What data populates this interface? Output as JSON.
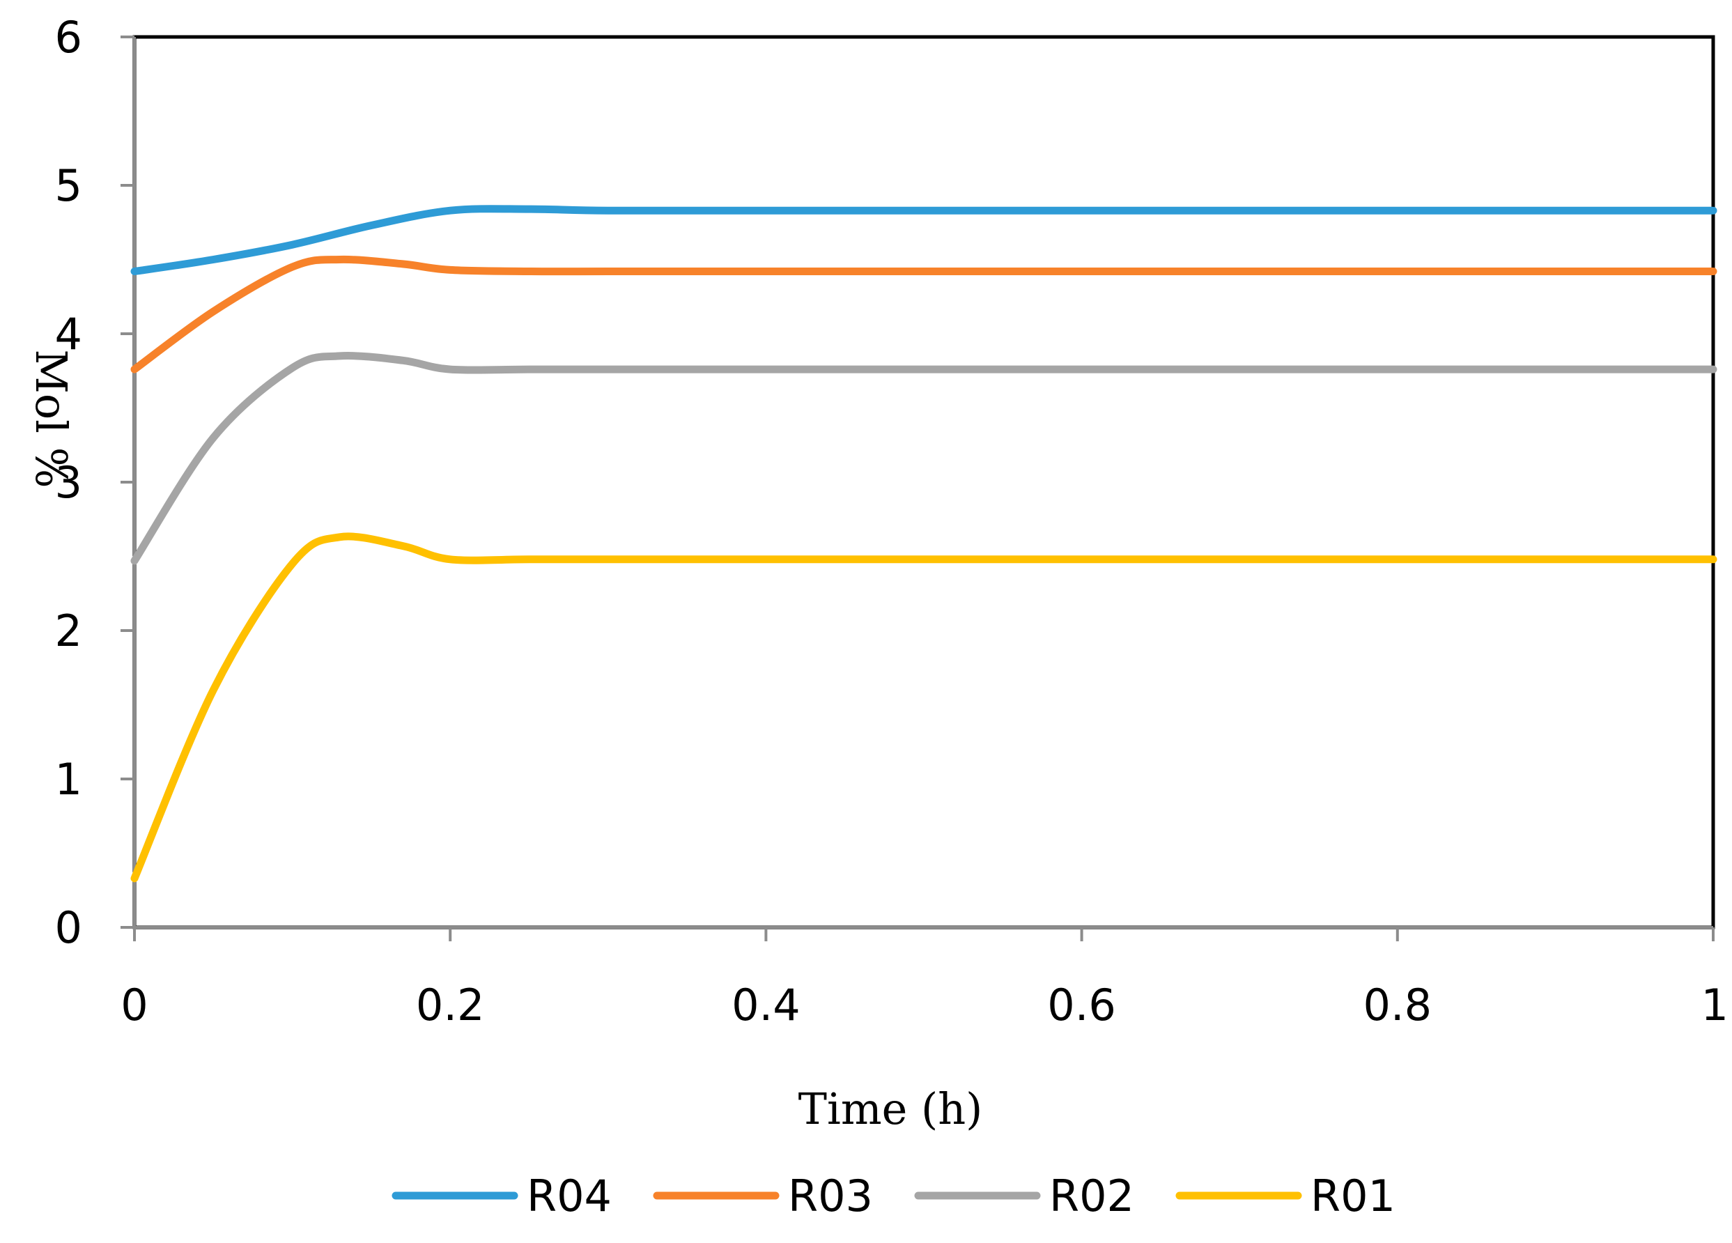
{
  "chart_data": {
    "type": "line",
    "title": "",
    "xlabel": "Time (h)",
    "ylabel": "Mol %",
    "xlim": [
      0,
      1
    ],
    "ylim": [
      0,
      6
    ],
    "xticks": [
      0,
      0.2,
      0.4,
      0.6,
      0.8,
      1
    ],
    "xtick_labels": [
      "0",
      "0.2",
      "0.4",
      "0.6",
      "0.8",
      "1"
    ],
    "yticks": [
      0,
      1,
      2,
      3,
      4,
      5,
      6
    ],
    "ytick_labels": [
      "0",
      "1",
      "2",
      "3",
      "4",
      "5",
      "6"
    ],
    "grid": false,
    "legend_position": "bottom",
    "series": [
      {
        "name": "R04",
        "color": "#2E9BD6",
        "x": [
          0,
          0.05,
          0.1,
          0.15,
          0.2,
          0.25,
          0.3,
          0.4,
          0.6,
          0.8,
          1.0
        ],
        "y": [
          4.42,
          4.5,
          4.6,
          4.73,
          4.83,
          4.84,
          4.83,
          4.83,
          4.83,
          4.83,
          4.83
        ]
      },
      {
        "name": "R03",
        "color": "#F7822A",
        "x": [
          0,
          0.05,
          0.1,
          0.13,
          0.17,
          0.2,
          0.25,
          0.3,
          0.4,
          0.6,
          0.8,
          1.0
        ],
        "y": [
          3.76,
          4.15,
          4.45,
          4.5,
          4.47,
          4.43,
          4.42,
          4.42,
          4.42,
          4.42,
          4.42,
          4.42
        ]
      },
      {
        "name": "R02",
        "color": "#A5A5A5",
        "x": [
          0,
          0.05,
          0.1,
          0.13,
          0.17,
          0.2,
          0.25,
          0.3,
          0.4,
          0.6,
          0.8,
          1.0
        ],
        "y": [
          2.47,
          3.3,
          3.77,
          3.85,
          3.82,
          3.76,
          3.76,
          3.76,
          3.76,
          3.76,
          3.76,
          3.76
        ]
      },
      {
        "name": "R01",
        "color": "#FFC000",
        "x": [
          0,
          0.05,
          0.1,
          0.13,
          0.17,
          0.2,
          0.25,
          0.3,
          0.4,
          0.6,
          0.8,
          1.0
        ],
        "y": [
          0.33,
          1.6,
          2.45,
          2.63,
          2.57,
          2.48,
          2.48,
          2.48,
          2.48,
          2.48,
          2.48,
          2.48
        ]
      }
    ]
  }
}
